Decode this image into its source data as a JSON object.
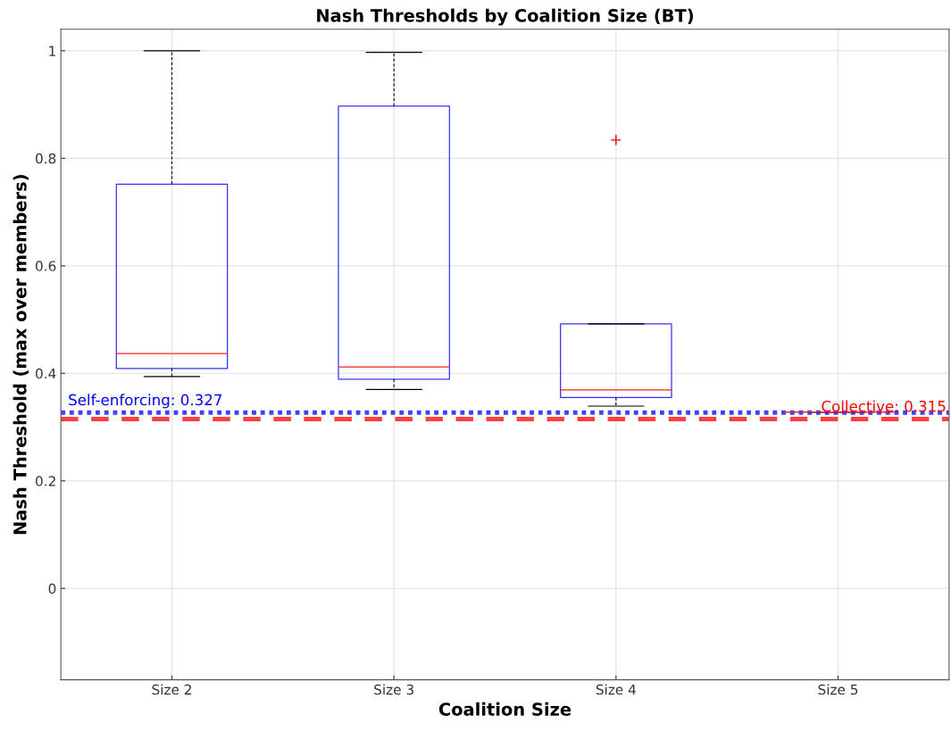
{
  "chart_data": {
    "type": "box",
    "title": "Nash Thresholds by Coalition Size (BT)",
    "xlabel": "Coalition Size",
    "ylabel": "Nash Threshold (max over members)",
    "categories": [
      "Size 2",
      "Size 3",
      "Size 4",
      "Size 5"
    ],
    "boxes": [
      {
        "low": 0.394,
        "q1": 0.409,
        "median": 0.437,
        "q3": 0.752,
        "high": 1.0
      },
      {
        "low": 0.37,
        "q1": 0.389,
        "median": 0.412,
        "q3": 0.897,
        "high": 0.997
      },
      {
        "low": 0.339,
        "q1": 0.355,
        "median": 0.369,
        "q3": 0.492,
        "high": 0.492,
        "outliers": [
          0.834
        ]
      },
      {
        "low": 0.328,
        "q1": 0.328,
        "median": 0.328,
        "q3": 0.328,
        "high": 0.328
      }
    ],
    "ylim": [
      -0.17,
      1.04
    ],
    "yticks": [
      0,
      0.2,
      0.4,
      0.6,
      0.8,
      1
    ],
    "grid": true,
    "ref_lines": [
      {
        "axis": "y",
        "value": 0.327,
        "label": "Self-enforcing: 0.327",
        "color": "#0000ff",
        "line_style": "dotted"
      },
      {
        "axis": "y",
        "value": 0.315,
        "label": "Collective: 0.315",
        "color": "#ff0000",
        "line_style": "dashed"
      }
    ]
  }
}
